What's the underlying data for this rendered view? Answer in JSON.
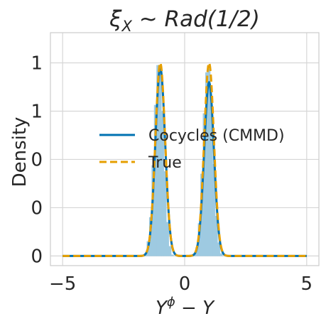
{
  "chart_data": {
    "type": "line",
    "title": "ξ_X ~ Rad(1/2)",
    "title_parts": {
      "xi": "ξ",
      "sub": "X",
      "rest": " ~ Rad(1/2)"
    },
    "xlabel": "Y^ϕ − Y",
    "xlabel_parts": {
      "base": "Y",
      "sup": "ϕ",
      "rest": " − Y"
    },
    "ylabel": "Density",
    "xlim": [
      -5.5,
      5.5
    ],
    "ylim": [
      -0.08,
      1.85
    ],
    "grid": true,
    "x_ticks": [
      {
        "value": -5,
        "label": "−5"
      },
      {
        "value": 0,
        "label": "0"
      },
      {
        "value": 5,
        "label": "5"
      }
    ],
    "y_ticks": [
      {
        "value": 0,
        "label": "0"
      },
      {
        "value": 0.4,
        "label": "0"
      },
      {
        "value": 0.8,
        "label": "0"
      },
      {
        "value": 1.2,
        "label": "1"
      },
      {
        "value": 1.6,
        "label": "1"
      }
    ],
    "legend": {
      "placement": "center",
      "entries": [
        {
          "label": "Cocycles (CMMD)",
          "style": "solid",
          "color": "#0072b2"
        },
        {
          "label": "True",
          "style": "dashed",
          "color": "#e69f00"
        }
      ]
    },
    "histogram": {
      "color": "#9ecae1",
      "bin_width": 0.1,
      "bins": [
        {
          "x": -1.6,
          "y": 0.02
        },
        {
          "x": -1.5,
          "y": 0.12
        },
        {
          "x": -1.4,
          "y": 0.32
        },
        {
          "x": -1.3,
          "y": 0.75
        },
        {
          "x": -1.2,
          "y": 1.25
        },
        {
          "x": -1.1,
          "y": 1.58
        },
        {
          "x": -1.0,
          "y": 1.55
        },
        {
          "x": -0.9,
          "y": 1.2
        },
        {
          "x": -0.8,
          "y": 0.7
        },
        {
          "x": -0.7,
          "y": 0.28
        },
        {
          "x": -0.6,
          "y": 0.08
        },
        {
          "x": -0.5,
          "y": 0.01
        },
        {
          "x": 0.4,
          "y": 0.01
        },
        {
          "x": 0.5,
          "y": 0.07
        },
        {
          "x": 0.6,
          "y": 0.27
        },
        {
          "x": 0.7,
          "y": 0.68
        },
        {
          "x": 0.8,
          "y": 1.18
        },
        {
          "x": 0.9,
          "y": 1.52
        },
        {
          "x": 1.0,
          "y": 1.55
        },
        {
          "x": 1.1,
          "y": 1.25
        },
        {
          "x": 1.2,
          "y": 0.76
        },
        {
          "x": 1.3,
          "y": 0.33
        },
        {
          "x": 1.4,
          "y": 0.11
        },
        {
          "x": 1.5,
          "y": 0.02
        }
      ]
    },
    "series": [
      {
        "name": "Cocycles (CMMD)",
        "color": "#0072b2",
        "style": "solid",
        "mixture": {
          "means": [
            -1.0,
            1.0
          ],
          "sd": 0.2,
          "peaks": [
            1.56,
            1.44
          ]
        }
      },
      {
        "name": "True",
        "color": "#e69f00",
        "style": "dashed",
        "mixture": {
          "means": [
            -1.0,
            1.0
          ],
          "sd": 0.2,
          "peaks": [
            1.6,
            1.6
          ]
        }
      }
    ],
    "x_range_drawn": [
      -5,
      5
    ]
  }
}
